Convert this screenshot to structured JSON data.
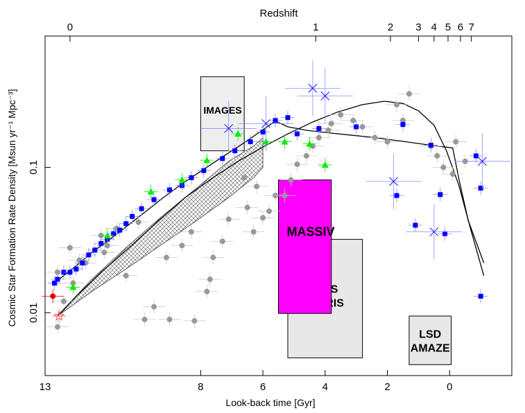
{
  "chart_data": {
    "type": "scatter",
    "title": "",
    "xlabel": "Look-back time [Gyr]",
    "ylabel": "Cosmic Star Formation Rate Density [Msun yr⁻¹ Mpc⁻³]",
    "x2label": "Redshift",
    "xlim": [
      13,
      -2.0
    ],
    "ylim": [
      0.0037,
      0.8
    ],
    "yscale": "log",
    "bottom_ticks": [
      {
        "label": "13",
        "x": 13
      },
      {
        "label": "8",
        "x": 8
      },
      {
        "label": "6",
        "x": 6
      },
      {
        "label": "4",
        "x": 4
      },
      {
        "label": "2",
        "x": 2
      },
      {
        "label": "0",
        "x": 0
      }
    ],
    "top_ticks": [
      {
        "label": "0",
        "x": 12.2
      },
      {
        "label": "1",
        "x": 4.3
      },
      {
        "label": "2",
        "x": 1.9
      },
      {
        "label": "3",
        "x": 1.0
      },
      {
        "label": "4",
        "x": 0.5
      },
      {
        "label": "5",
        "x": 0.05
      },
      {
        "label": "6",
        "x": -0.35
      },
      {
        "label": "7",
        "x": -0.7
      }
    ],
    "left_ticks": [
      {
        "label": "0.1",
        "y": 0.1
      },
      {
        "label": "0.01",
        "y": 0.01
      }
    ],
    "boxes": [
      {
        "label": "IMAGES",
        "x": [
          8.0,
          6.6
        ],
        "y": [
          0.42,
          0.13
        ],
        "fill": "#eeeeee"
      },
      {
        "label": "SINS",
        "label2": "OSIRIS",
        "x": [
          5.2,
          2.8
        ],
        "y": [
          0.032,
          0.0049
        ],
        "fill": "#e8e8e8"
      },
      {
        "label": "MASSIV",
        "x": [
          5.5,
          3.8
        ],
        "y": [
          0.082,
          0.0099
        ],
        "fill": "#ff00ff"
      },
      {
        "label": "LSD",
        "label2": "AMAZE",
        "x": [
          1.3,
          -0.05
        ],
        "y": [
          0.0095,
          0.0044
        ],
        "fill": "#e8e8e8"
      }
    ],
    "series": [
      {
        "name": "",
        "color": "#999999",
        "marker": "circle",
        "points": [
          [
            12.6,
            0.008
          ],
          [
            12.4,
            0.012
          ],
          [
            12.1,
            0.016
          ],
          [
            11.9,
            0.023
          ],
          [
            12.6,
            0.019
          ],
          [
            12.2,
            0.028
          ],
          [
            11.7,
            0.022
          ],
          [
            11.1,
            0.026
          ],
          [
            10.4,
            0.018
          ],
          [
            9.8,
            0.009
          ],
          [
            9.5,
            0.011
          ],
          [
            9.0,
            0.009
          ],
          [
            8.2,
            0.0088
          ],
          [
            7.8,
            0.014
          ],
          [
            9.1,
            0.024
          ],
          [
            8.6,
            0.029
          ],
          [
            8.3,
            0.036
          ],
          [
            7.7,
            0.017
          ],
          [
            7.6,
            0.024
          ],
          [
            7.3,
            0.031
          ],
          [
            7.1,
            0.044
          ],
          [
            6.5,
            0.053
          ],
          [
            6.3,
            0.036
          ],
          [
            6.0,
            0.045
          ],
          [
            5.8,
            0.05
          ],
          [
            5.6,
            0.064
          ],
          [
            5.3,
            0.064
          ],
          [
            5.1,
            0.082
          ],
          [
            6.6,
            0.085
          ],
          [
            6.2,
            0.074
          ],
          [
            4.9,
            0.105
          ],
          [
            4.6,
            0.12
          ],
          [
            4.4,
            0.14
          ],
          [
            4.2,
            0.16
          ],
          [
            3.9,
            0.18
          ],
          [
            3.5,
            0.23
          ],
          [
            3.8,
            0.2
          ],
          [
            3.1,
            0.21
          ],
          [
            2.8,
            0.19
          ],
          [
            2.4,
            0.16
          ],
          [
            2.0,
            0.15
          ],
          [
            1.7,
            0.27
          ],
          [
            1.5,
            0.21
          ],
          [
            1.3,
            0.32
          ],
          [
            0.6,
            0.14
          ],
          [
            0.4,
            0.12
          ],
          [
            0.2,
            0.1
          ],
          [
            -0.1,
            0.09
          ],
          [
            -0.5,
            0.11
          ],
          [
            -0.2,
            0.15
          ],
          [
            11.2,
            0.034
          ],
          [
            11.0,
            0.029
          ],
          [
            10.7,
            0.038
          ],
          [
            10.0,
            0.042
          ]
        ]
      },
      {
        "name": "",
        "color": "#0000ff",
        "marker": "square",
        "points": [
          [
            12.7,
            0.016
          ],
          [
            12.6,
            0.017
          ],
          [
            12.4,
            0.019
          ],
          [
            12.2,
            0.019
          ],
          [
            12.0,
            0.02
          ],
          [
            11.8,
            0.022
          ],
          [
            11.6,
            0.025
          ],
          [
            11.4,
            0.027
          ],
          [
            11.2,
            0.03
          ],
          [
            11.0,
            0.032
          ],
          [
            10.8,
            0.035
          ],
          [
            10.6,
            0.037
          ],
          [
            10.4,
            0.041
          ],
          [
            10.2,
            0.046
          ],
          [
            9.9,
            0.052
          ],
          [
            9.5,
            0.06
          ],
          [
            9.0,
            0.07
          ],
          [
            8.6,
            0.075
          ],
          [
            8.3,
            0.085
          ],
          [
            7.9,
            0.095
          ],
          [
            7.3,
            0.115
          ],
          [
            6.9,
            0.13
          ],
          [
            6.4,
            0.15
          ],
          [
            6.0,
            0.175
          ],
          [
            5.6,
            0.21
          ],
          [
            5.2,
            0.22
          ],
          [
            4.9,
            0.17
          ],
          [
            4.2,
            0.185
          ],
          [
            3.0,
            0.19
          ],
          [
            1.7,
            0.064
          ],
          [
            1.5,
            0.197
          ],
          [
            1.1,
            0.04
          ],
          [
            0.6,
            0.142
          ],
          [
            0.3,
            0.065
          ],
          [
            0.15,
            0.035
          ],
          [
            -0.85,
            0.12
          ],
          [
            -1.0,
            0.072
          ],
          [
            -1.0,
            0.013
          ]
        ]
      },
      {
        "name": "",
        "color": "#00ee00",
        "marker": "triangle",
        "points": [
          [
            12.1,
            0.015
          ],
          [
            11.0,
            0.034
          ],
          [
            9.6,
            0.068
          ],
          [
            8.6,
            0.082
          ],
          [
            7.8,
            0.112
          ],
          [
            6.8,
            0.17
          ],
          [
            5.9,
            0.15
          ],
          [
            5.3,
            0.15
          ],
          [
            4.5,
            0.145
          ],
          [
            4.0,
            0.104
          ]
        ]
      },
      {
        "name": "",
        "color": "#3333ff",
        "marker": "cross",
        "points": [
          [
            7.1,
            0.185
          ],
          [
            5.9,
            0.2
          ],
          [
            4.4,
            0.35
          ],
          [
            4.0,
            0.31
          ],
          [
            1.8,
            0.08
          ],
          [
            0.5,
            0.036
          ],
          [
            -1.05,
            0.11
          ]
        ]
      },
      {
        "name": "",
        "color": "#dd0000",
        "marker": "circle",
        "points": [
          [
            12.75,
            0.013
          ]
        ]
      },
      {
        "name": "",
        "color": "#ff6666",
        "marker": "star",
        "points": [
          [
            12.55,
            0.0095
          ]
        ]
      }
    ],
    "curves": [
      {
        "name": "",
        "color": "#000000",
        "points": [
          [
            12.7,
            0.016
          ],
          [
            12.4,
            0.018
          ],
          [
            12.0,
            0.021
          ],
          [
            11.5,
            0.026
          ],
          [
            11.0,
            0.031
          ],
          [
            10.4,
            0.039
          ],
          [
            9.8,
            0.049
          ],
          [
            9.2,
            0.062
          ],
          [
            8.6,
            0.077
          ],
          [
            7.9,
            0.097
          ],
          [
            7.3,
            0.118
          ],
          [
            6.7,
            0.143
          ],
          [
            6.1,
            0.175
          ],
          [
            5.6,
            0.208
          ],
          [
            5.2,
            0.19
          ],
          [
            4.6,
            0.18
          ],
          [
            3.8,
            0.172
          ],
          [
            2.6,
            0.162
          ],
          [
            1.6,
            0.152
          ],
          [
            0.6,
            0.142
          ],
          [
            -0.1,
            0.136
          ],
          [
            -0.3,
            0.083
          ],
          [
            -0.6,
            0.043
          ],
          [
            -1.1,
            0.022
          ]
        ]
      },
      {
        "name": "",
        "color": "#000000",
        "points": [
          [
            12.6,
            0.0095
          ],
          [
            12.0,
            0.013
          ],
          [
            11.2,
            0.019
          ],
          [
            10.3,
            0.028
          ],
          [
            9.4,
            0.042
          ],
          [
            8.5,
            0.062
          ],
          [
            7.6,
            0.085
          ],
          [
            6.8,
            0.11
          ],
          [
            6.0,
            0.138
          ],
          [
            5.2,
            0.17
          ],
          [
            4.4,
            0.205
          ],
          [
            3.6,
            0.24
          ],
          [
            2.8,
            0.27
          ],
          [
            2.1,
            0.285
          ],
          [
            1.5,
            0.275
          ],
          [
            1.0,
            0.245
          ],
          [
            0.5,
            0.195
          ],
          [
            0.1,
            0.13
          ],
          [
            -0.3,
            0.075
          ],
          [
            -0.7,
            0.036
          ],
          [
            -1.1,
            0.018
          ]
        ]
      }
    ],
    "band": {
      "upper": [
        [
          12.6,
          0.0095
        ],
        [
          11.5,
          0.017
        ],
        [
          10.4,
          0.028
        ],
        [
          9.3,
          0.045
        ],
        [
          8.2,
          0.07
        ],
        [
          7.1,
          0.11
        ],
        [
          6.3,
          0.14
        ],
        [
          6.0,
          0.16
        ]
      ],
      "lower": [
        [
          12.6,
          0.0095
        ],
        [
          11.5,
          0.014
        ],
        [
          10.4,
          0.02
        ],
        [
          9.3,
          0.029
        ],
        [
          8.2,
          0.042
        ],
        [
          7.1,
          0.062
        ],
        [
          6.3,
          0.085
        ],
        [
          6.0,
          0.1
        ]
      ]
    }
  }
}
